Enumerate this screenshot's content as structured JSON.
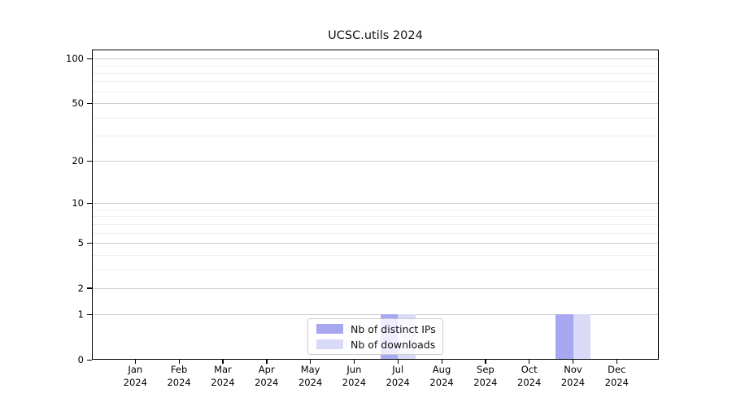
{
  "title": "UCSC.utils 2024",
  "legend": {
    "items": [
      {
        "label": "Nb of distinct IPs",
        "color": "#a7a7f2"
      },
      {
        "label": "Nb of downloads",
        "color": "#d9d9f8"
      }
    ]
  },
  "colors": {
    "distinct_ips_bar": "#a7a7f2",
    "downloads_bar": "#d9d9f8",
    "major_grid": "#cdcdcd",
    "minor_grid": "#efefef",
    "axis": "#000000"
  },
  "chart_data": {
    "type": "bar",
    "title": "UCSC.utils 2024",
    "categories": [
      "Jan 2024",
      "Feb 2024",
      "Mar 2024",
      "Apr 2024",
      "May 2024",
      "Jun 2024",
      "Jul 2024",
      "Aug 2024",
      "Sep 2024",
      "Oct 2024",
      "Nov 2024",
      "Dec 2024"
    ],
    "series": [
      {
        "name": "Nb of distinct IPs",
        "color": "#a7a7f2",
        "values": [
          0,
          0,
          0,
          0,
          0,
          0,
          1,
          0,
          0,
          0,
          1,
          0
        ]
      },
      {
        "name": "Nb of downloads",
        "color": "#d9d9f8",
        "values": [
          0,
          0,
          0,
          0,
          0,
          0,
          1,
          0,
          0,
          0,
          1,
          0
        ]
      }
    ],
    "xlabel": "",
    "ylabel": "",
    "yticks": [
      0,
      1,
      2,
      5,
      10,
      20,
      50,
      100
    ],
    "minor_yticks": [
      3,
      4,
      6,
      7,
      8,
      9,
      30,
      40,
      60,
      70,
      80,
      90
    ],
    "yscale": "log1p",
    "ylim": [
      0,
      115
    ],
    "grid": "horizontal",
    "legend_position": "bottom-center-inside"
  }
}
